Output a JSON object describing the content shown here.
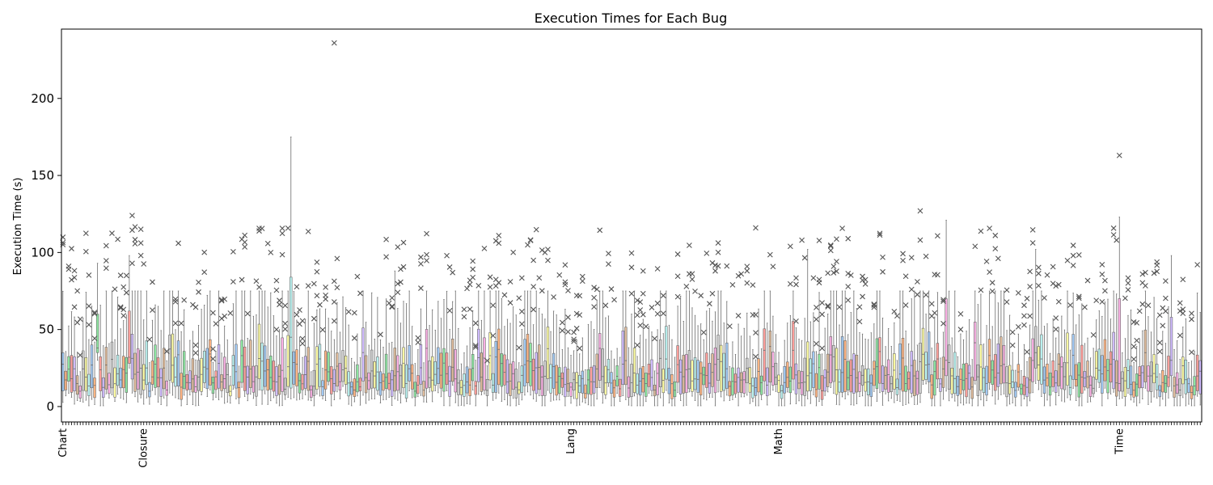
{
  "chart_data": {
    "type": "boxplot",
    "title": "Execution Times for Each Bug",
    "xlabel": "",
    "ylabel": "Execution Time (s)",
    "ylim": [
      -10,
      245
    ],
    "y_ticks": [
      0,
      50,
      100,
      150,
      200
    ],
    "grid": false,
    "legend": "none",
    "bug_count": 395,
    "palette": [
      "#a1c9f4",
      "#ffb482",
      "#8de5a1",
      "#ff9f9b",
      "#d0bbff",
      "#debb9b",
      "#fab0e4",
      "#cfcfcf",
      "#fffea3",
      "#b9f2f0"
    ],
    "outlier_marker": "x",
    "project_labels": [
      {
        "label": "Chart",
        "bug_index": 0
      },
      {
        "label": "Closure",
        "bug_index": 28
      },
      {
        "label": "Lang",
        "bug_index": 176
      },
      {
        "label": "Math",
        "bug_index": 248
      },
      {
        "label": "Time",
        "bug_index": 366
      }
    ],
    "notable_boxes": [
      {
        "bug_index": 12,
        "q1": 35,
        "median": 38,
        "q3": 60,
        "whisker_low": 30,
        "whisker_high": 93
      },
      {
        "bug_index": 23,
        "q1": 28,
        "median": 32,
        "q3": 62,
        "whisker_low": 25,
        "whisker_high": 98
      },
      {
        "bug_index": 79,
        "q1": 12,
        "median": 45,
        "q3": 84,
        "whisker_low": 5,
        "whisker_high": 175
      },
      {
        "bug_index": 115,
        "q1": 10,
        "median": 20,
        "q3": 38,
        "whisker_low": 5,
        "whisker_high": 88
      },
      {
        "bug_index": 258,
        "q1": 10,
        "median": 20,
        "q3": 42,
        "whisker_low": 5,
        "whisker_high": 102
      },
      {
        "bug_index": 306,
        "q1": 20,
        "median": 30,
        "q3": 70,
        "whisker_low": 10,
        "whisker_high": 121
      },
      {
        "bug_index": 337,
        "q1": 25,
        "median": 35,
        "q3": 52,
        "whisker_low": 15,
        "whisker_high": 102
      },
      {
        "bug_index": 366,
        "q1": 10,
        "median": 15,
        "q3": 70,
        "whisker_low": 5,
        "whisker_high": 123
      },
      {
        "bug_index": 384,
        "q1": 20,
        "median": 30,
        "q3": 58,
        "whisker_low": 10,
        "whisker_high": 98
      }
    ],
    "notable_outliers": [
      {
        "bug_index": 94,
        "value": 236
      },
      {
        "bug_index": 24,
        "value": 124
      },
      {
        "bug_index": 366,
        "value": 163
      },
      {
        "bug_index": 297,
        "value": 127
      },
      {
        "bug_index": 240,
        "value": 116
      },
      {
        "bug_index": 252,
        "value": 104
      },
      {
        "bug_index": 256,
        "value": 108
      },
      {
        "bug_index": 272,
        "value": 109
      },
      {
        "bug_index": 167,
        "value": 100
      },
      {
        "bug_index": 72,
        "value": 100
      }
    ],
    "typical_range": {
      "q1": 10,
      "median": 18,
      "q3": 28,
      "whisker_low": 3,
      "whisker_high": 55
    }
  }
}
